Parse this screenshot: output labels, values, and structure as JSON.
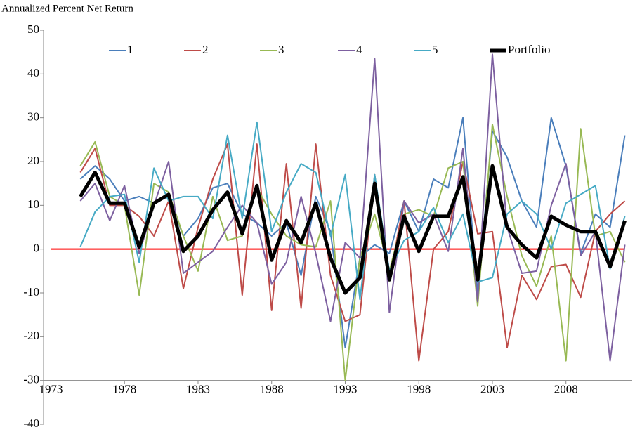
{
  "chart_data": {
    "type": "line",
    "y_axis_label": "Annualized Percent Net Return",
    "x": [
      1975,
      1976,
      1977,
      1978,
      1979,
      1980,
      1981,
      1982,
      1983,
      1984,
      1985,
      1986,
      1987,
      1988,
      1989,
      1990,
      1991,
      1992,
      1993,
      1994,
      1995,
      1996,
      1997,
      1998,
      1999,
      2000,
      2001,
      2002,
      2003,
      2004,
      2005,
      2006,
      2007,
      2008,
      2009,
      2010,
      2011,
      2012
    ],
    "series": [
      {
        "name": "1",
        "color": "#4a7ebb",
        "width": 2,
        "values": [
          16,
          19,
          16,
          11,
          12,
          10.5,
          12,
          3,
          7,
          14,
          15,
          8,
          6,
          3,
          6,
          -6,
          12,
          4,
          -22.5,
          -2,
          1,
          -1,
          11,
          4,
          16,
          14,
          30,
          -10,
          27,
          21,
          11,
          5,
          30,
          19,
          -1,
          8,
          5,
          26
        ]
      },
      {
        "name": "2",
        "color": "#be4b48",
        "width": 2,
        "values": [
          17.5,
          23,
          10,
          10,
          7.5,
          3,
          11,
          -9,
          5,
          16,
          24,
          -10.5,
          24,
          -14,
          19.5,
          -13.5,
          24,
          -6,
          -16.5,
          -15,
          17,
          -7,
          11,
          -25.5,
          0,
          4,
          20,
          3.5,
          4,
          -22.5,
          -6,
          -11.5,
          -4,
          -3.5,
          -11,
          4,
          8,
          11
        ]
      },
      {
        "name": "3",
        "color": "#98b954",
        "width": 2,
        "values": [
          19,
          24.5,
          12,
          10,
          -10.5,
          15,
          13,
          3,
          -5,
          12,
          2,
          3,
          14,
          8,
          3,
          1,
          0.5,
          11,
          -30,
          -2,
          8,
          -5,
          8,
          9,
          7.5,
          18.5,
          20,
          -13,
          28.5,
          12,
          -1.5,
          -8.5,
          3,
          -25.5,
          27.5,
          3,
          4,
          -3
        ]
      },
      {
        "name": "4",
        "color": "#7d60a0",
        "width": 2,
        "values": [
          11,
          15,
          6.5,
          14.5,
          -1,
          10,
          20,
          -5.5,
          -3,
          -0.5,
          5,
          10,
          6,
          -8,
          -3,
          12,
          -1,
          -16.5,
          1.5,
          -2,
          43.5,
          -14.5,
          11,
          6,
          8,
          -0.5,
          23,
          -12,
          44.5,
          5,
          -5.5,
          -5,
          10,
          19.5,
          -1.5,
          4,
          -25.5,
          1
        ]
      },
      {
        "name": "5",
        "color": "#46aac5",
        "width": 2,
        "values": [
          0.5,
          8.5,
          12,
          12.5,
          -3,
          18.5,
          11,
          12,
          12,
          7,
          26,
          7,
          29,
          4,
          13,
          19.5,
          17.5,
          3,
          17,
          -11.5,
          17,
          -5,
          2,
          4,
          9.5,
          1.5,
          8,
          -7.5,
          -6.5,
          8,
          11,
          8,
          0,
          10.5,
          12.5,
          14.5,
          -4.5,
          7.5
        ]
      },
      {
        "name": "Portfolio",
        "color": "#000000",
        "width": 5,
        "values": [
          12,
          17.5,
          10.5,
          10.5,
          0.5,
          10.5,
          12.5,
          -0.5,
          3,
          9,
          13,
          3.5,
          14.5,
          -2.5,
          6.5,
          1.5,
          10.5,
          -2,
          -10,
          -6.5,
          15,
          -7,
          7.5,
          -0.5,
          7.5,
          7.5,
          16.5,
          -7,
          19,
          5,
          1,
          -2,
          7.5,
          5.5,
          4,
          4,
          -4,
          6.5
        ]
      }
    ],
    "reference_line": {
      "y": 0,
      "x": [
        1973,
        2012
      ],
      "color": "#ff0000"
    },
    "xlim": [
      1972.5,
      2012.5
    ],
    "xticks": [
      1973,
      1978,
      1983,
      1988,
      1993,
      1998,
      2003,
      2008
    ],
    "ylim": [
      -40,
      50
    ],
    "yticks": [
      -40,
      -30,
      -20,
      -10,
      0,
      10,
      20,
      30,
      40,
      50
    ],
    "x_axis_at": -30,
    "grid": false,
    "legend_position": "top"
  }
}
